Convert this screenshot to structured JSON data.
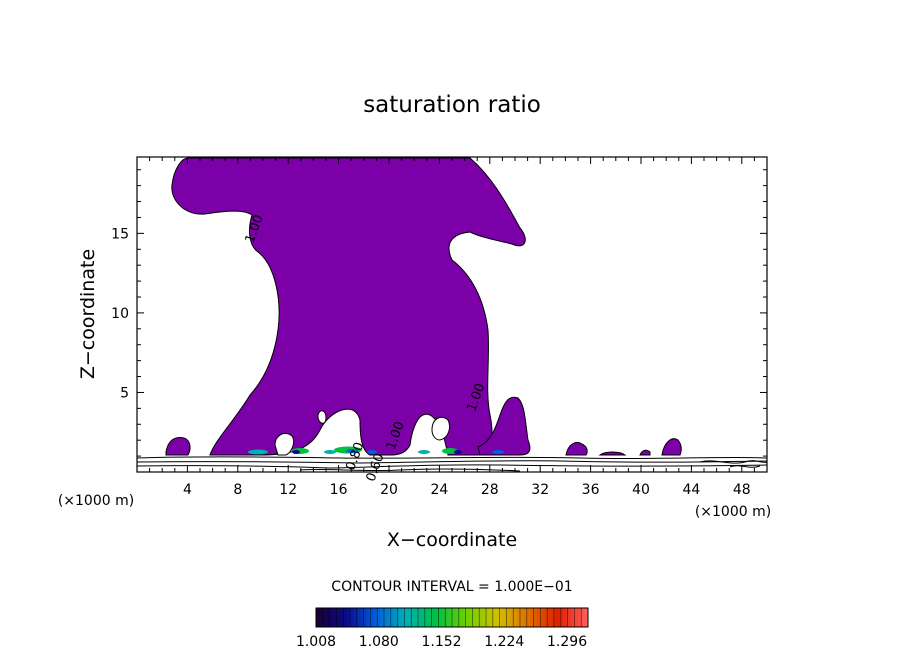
{
  "chart_data": {
    "type": "contour",
    "title": "saturation ratio",
    "xlabel": "X−coordinate",
    "ylabel": "Z−coordinate",
    "x_unit": "(×1000 m)",
    "y_unit": "(×1000 m)",
    "xlim": [
      0,
      50
    ],
    "ylim": [
      0,
      19.8
    ],
    "x_ticks": [
      4,
      8,
      12,
      16,
      20,
      24,
      28,
      32,
      36,
      40,
      44,
      48
    ],
    "x_tick_labels": [
      "4",
      "8",
      "12",
      "16",
      "20",
      "24",
      "28",
      "32",
      "36",
      "40",
      "44",
      "48"
    ],
    "y_ticks": [
      5,
      10,
      15
    ],
    "y_tick_labels": [
      "5",
      "10",
      "15"
    ],
    "contour_interval_text": "CONTOUR INTERVAL = 1.000E−01",
    "contour_labels": [
      {
        "text": "1.00",
        "x": 9.6,
        "y": 15.2
      },
      {
        "text": "1.00",
        "x": 27.2,
        "y": 4.6
      },
      {
        "text": "1.00",
        "x": 20.8,
        "y": 2.2
      },
      {
        "text": "0.80",
        "x": 17.6,
        "y": 0.9
      },
      {
        "text": "0.60",
        "x": 19.2,
        "y": 0.2
      }
    ],
    "fill_color": "#7b00a8",
    "colorbar": {
      "min": 1.008,
      "max": 1.32,
      "tick_labels": [
        "1.008",
        "1.080",
        "1.152",
        "1.224",
        "1.296"
      ],
      "colors": [
        "#1a0030",
        "#0a0a8a",
        "#0060e0",
        "#00b0b0",
        "#00c040",
        "#70d000",
        "#d0c000",
        "#e07000",
        "#e02000",
        "#ff6060"
      ]
    }
  }
}
